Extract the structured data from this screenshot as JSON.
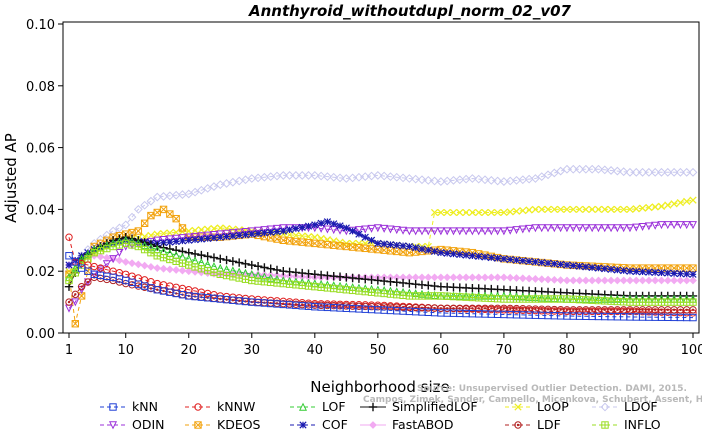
{
  "chart_data": {
    "type": "line",
    "title": "Annthyroid_withoutdupl_norm_02_v07",
    "xlabel": "Neighborhood size",
    "ylabel": "Adjusted AP",
    "xlim": [
      1,
      100
    ],
    "ylim": [
      0,
      0.1
    ],
    "x_ticks": [
      1,
      10,
      20,
      30,
      40,
      50,
      60,
      70,
      80,
      90,
      100
    ],
    "y_ticks": [
      "0.00",
      "0.02",
      "0.04",
      "0.06",
      "0.08",
      "0.10"
    ],
    "grid": false,
    "legend_position": "bottom",
    "watermark": [
      "Source: Unsupervised Outlier Detection. DAMI, 2015.",
      "Campos, Zimek, Sander, Campello, Micenkova, Schubert, Assent, Houle"
    ],
    "series": [
      {
        "name": "kNN",
        "color": "#1f3fd6",
        "marker": "square",
        "dash": "4,3",
        "points": [
          [
            1,
            0.025
          ],
          [
            3,
            0.021
          ],
          [
            5,
            0.019
          ],
          [
            8,
            0.018
          ],
          [
            10,
            0.017
          ],
          [
            15,
            0.014
          ],
          [
            20,
            0.012
          ],
          [
            25,
            0.011
          ],
          [
            30,
            0.01
          ],
          [
            40,
            0.0085
          ],
          [
            50,
            0.0075
          ],
          [
            60,
            0.0065
          ],
          [
            70,
            0.006
          ],
          [
            80,
            0.0055
          ],
          [
            90,
            0.0052
          ],
          [
            100,
            0.005
          ]
        ]
      },
      {
        "name": "ODIN",
        "color": "#9b30d9",
        "marker": "triangle-down",
        "dash": "4,3",
        "points": [
          [
            1,
            0.008
          ],
          [
            2,
            0.01
          ],
          [
            3,
            0.014
          ],
          [
            5,
            0.019
          ],
          [
            8,
            0.024
          ],
          [
            10,
            0.028
          ],
          [
            15,
            0.03
          ],
          [
            20,
            0.031
          ],
          [
            25,
            0.032
          ],
          [
            30,
            0.033
          ],
          [
            35,
            0.034
          ],
          [
            40,
            0.034
          ],
          [
            45,
            0.033
          ],
          [
            50,
            0.034
          ],
          [
            55,
            0.033
          ],
          [
            60,
            0.033
          ],
          [
            65,
            0.033
          ],
          [
            70,
            0.033
          ],
          [
            75,
            0.034
          ],
          [
            80,
            0.034
          ],
          [
            85,
            0.034
          ],
          [
            90,
            0.034
          ],
          [
            95,
            0.035
          ],
          [
            100,
            0.035
          ]
        ]
      },
      {
        "name": "kNNW",
        "color": "#e02020",
        "marker": "circle",
        "dash": "4,3",
        "points": [
          [
            1,
            0.031
          ],
          [
            2,
            0.023
          ],
          [
            4,
            0.022
          ],
          [
            6,
            0.021
          ],
          [
            8,
            0.02
          ],
          [
            10,
            0.019
          ],
          [
            15,
            0.016
          ],
          [
            20,
            0.014
          ],
          [
            25,
            0.012
          ],
          [
            30,
            0.011
          ],
          [
            40,
            0.0095
          ],
          [
            50,
            0.009
          ],
          [
            60,
            0.008
          ],
          [
            70,
            0.0075
          ],
          [
            80,
            0.007
          ],
          [
            90,
            0.007
          ],
          [
            100,
            0.0065
          ]
        ]
      },
      {
        "name": "KDEOS",
        "color": "#f2a20c",
        "marker": "square-x",
        "dash": "4,3",
        "points": [
          [
            1,
            0.019
          ],
          [
            2,
            0.003
          ],
          [
            3,
            0.012
          ],
          [
            5,
            0.028
          ],
          [
            8,
            0.031
          ],
          [
            10,
            0.032
          ],
          [
            12,
            0.033
          ],
          [
            14,
            0.038
          ],
          [
            16,
            0.04
          ],
          [
            18,
            0.037
          ],
          [
            20,
            0.031
          ],
          [
            25,
            0.031
          ],
          [
            30,
            0.032
          ],
          [
            35,
            0.03
          ],
          [
            40,
            0.029
          ],
          [
            45,
            0.028
          ],
          [
            50,
            0.027
          ],
          [
            55,
            0.026
          ],
          [
            60,
            0.027
          ],
          [
            65,
            0.026
          ],
          [
            70,
            0.024
          ],
          [
            75,
            0.023
          ],
          [
            80,
            0.022
          ],
          [
            90,
            0.021
          ],
          [
            100,
            0.021
          ]
        ]
      },
      {
        "name": "LOF",
        "color": "#33cc33",
        "marker": "triangle",
        "dash": "4,3",
        "points": [
          [
            1,
            0.018
          ],
          [
            3,
            0.024
          ],
          [
            5,
            0.027
          ],
          [
            8,
            0.029
          ],
          [
            10,
            0.03
          ],
          [
            12,
            0.029
          ],
          [
            15,
            0.027
          ],
          [
            20,
            0.024
          ],
          [
            25,
            0.021
          ],
          [
            30,
            0.019
          ],
          [
            35,
            0.017
          ],
          [
            40,
            0.016
          ],
          [
            45,
            0.015
          ],
          [
            50,
            0.014
          ],
          [
            55,
            0.013
          ],
          [
            60,
            0.012
          ],
          [
            70,
            0.012
          ],
          [
            80,
            0.011
          ],
          [
            90,
            0.011
          ],
          [
            100,
            0.011
          ]
        ]
      },
      {
        "name": "COF",
        "color": "#1a1ab0",
        "marker": "star",
        "dash": "4,3",
        "points": [
          [
            1,
            0.022
          ],
          [
            3,
            0.025
          ],
          [
            5,
            0.027
          ],
          [
            8,
            0.029
          ],
          [
            10,
            0.03
          ],
          [
            15,
            0.029
          ],
          [
            20,
            0.03
          ],
          [
            25,
            0.031
          ],
          [
            30,
            0.032
          ],
          [
            35,
            0.033
          ],
          [
            40,
            0.035
          ],
          [
            42,
            0.036
          ],
          [
            45,
            0.034
          ],
          [
            50,
            0.029
          ],
          [
            55,
            0.028
          ],
          [
            60,
            0.026
          ],
          [
            65,
            0.025
          ],
          [
            70,
            0.024
          ],
          [
            75,
            0.023
          ],
          [
            80,
            0.022
          ],
          [
            90,
            0.02
          ],
          [
            100,
            0.019
          ]
        ]
      },
      {
        "name": "SimplifiedLOF",
        "color": "#111111",
        "marker": "plus",
        "dash": "",
        "points": [
          [
            1,
            0.015
          ],
          [
            3,
            0.024
          ],
          [
            5,
            0.027
          ],
          [
            8,
            0.03
          ],
          [
            10,
            0.031
          ],
          [
            12,
            0.03
          ],
          [
            15,
            0.028
          ],
          [
            20,
            0.026
          ],
          [
            25,
            0.024
          ],
          [
            30,
            0.022
          ],
          [
            35,
            0.02
          ],
          [
            40,
            0.019
          ],
          [
            45,
            0.018
          ],
          [
            50,
            0.017
          ],
          [
            55,
            0.016
          ],
          [
            60,
            0.015
          ],
          [
            70,
            0.014
          ],
          [
            80,
            0.013
          ],
          [
            90,
            0.012
          ],
          [
            100,
            0.012
          ]
        ]
      },
      {
        "name": "FastABOD",
        "color": "#f2aaf2",
        "marker": "diamond",
        "dash": "",
        "points": [
          [
            1,
            0.022
          ],
          [
            3,
            0.024
          ],
          [
            5,
            0.025
          ],
          [
            8,
            0.024
          ],
          [
            10,
            0.023
          ],
          [
            15,
            0.021
          ],
          [
            20,
            0.02
          ],
          [
            25,
            0.019
          ],
          [
            30,
            0.019
          ],
          [
            40,
            0.018
          ],
          [
            50,
            0.018
          ],
          [
            60,
            0.018
          ],
          [
            70,
            0.018
          ],
          [
            80,
            0.017
          ],
          [
            90,
            0.017
          ],
          [
            100,
            0.017
          ]
        ]
      },
      {
        "name": "LoOP",
        "color": "#eeee22",
        "marker": "x",
        "dash": "4,3",
        "points": [
          [
            1,
            0.02
          ],
          [
            3,
            0.023
          ],
          [
            5,
            0.026
          ],
          [
            8,
            0.029
          ],
          [
            10,
            0.03
          ],
          [
            15,
            0.032
          ],
          [
            20,
            0.033
          ],
          [
            25,
            0.034
          ],
          [
            30,
            0.033
          ],
          [
            35,
            0.032
          ],
          [
            40,
            0.031
          ],
          [
            45,
            0.029
          ],
          [
            50,
            0.029
          ],
          [
            55,
            0.028
          ],
          [
            58,
            0.028
          ],
          [
            59,
            0.039
          ],
          [
            60,
            0.039
          ],
          [
            65,
            0.039
          ],
          [
            70,
            0.039
          ],
          [
            75,
            0.04
          ],
          [
            80,
            0.04
          ],
          [
            85,
            0.04
          ],
          [
            90,
            0.04
          ],
          [
            95,
            0.041
          ],
          [
            100,
            0.043
          ]
        ]
      },
      {
        "name": "LDF",
        "color": "#b22222",
        "marker": "circle-dot",
        "dash": "4,3",
        "points": [
          [
            1,
            0.01
          ],
          [
            3,
            0.015
          ],
          [
            5,
            0.018
          ],
          [
            8,
            0.017
          ],
          [
            10,
            0.016
          ],
          [
            15,
            0.014
          ],
          [
            20,
            0.012
          ],
          [
            25,
            0.011
          ],
          [
            30,
            0.01
          ],
          [
            40,
            0.009
          ],
          [
            50,
            0.0085
          ],
          [
            60,
            0.008
          ],
          [
            70,
            0.008
          ],
          [
            80,
            0.0075
          ],
          [
            90,
            0.0075
          ],
          [
            100,
            0.0075
          ]
        ]
      },
      {
        "name": "LDOF",
        "color": "#c8c8ee",
        "marker": "diamond-open",
        "dash": "4,3",
        "points": [
          [
            1,
            0.02
          ],
          [
            3,
            0.025
          ],
          [
            5,
            0.029
          ],
          [
            8,
            0.033
          ],
          [
            10,
            0.035
          ],
          [
            12,
            0.04
          ],
          [
            15,
            0.044
          ],
          [
            20,
            0.045
          ],
          [
            25,
            0.048
          ],
          [
            30,
            0.05
          ],
          [
            35,
            0.051
          ],
          [
            40,
            0.051
          ],
          [
            45,
            0.05
          ],
          [
            50,
            0.051
          ],
          [
            55,
            0.05
          ],
          [
            60,
            0.049
          ],
          [
            65,
            0.05
          ],
          [
            70,
            0.049
          ],
          [
            75,
            0.05
          ],
          [
            80,
            0.053
          ],
          [
            85,
            0.053
          ],
          [
            90,
            0.052
          ],
          [
            95,
            0.052
          ],
          [
            100,
            0.052
          ]
        ]
      },
      {
        "name": "INFLO",
        "color": "#99dd22",
        "marker": "square-star",
        "dash": "4,3",
        "points": [
          [
            1,
            0.017
          ],
          [
            3,
            0.022
          ],
          [
            5,
            0.026
          ],
          [
            8,
            0.028
          ],
          [
            10,
            0.029
          ],
          [
            12,
            0.028
          ],
          [
            15,
            0.025
          ],
          [
            20,
            0.022
          ],
          [
            25,
            0.019
          ],
          [
            30,
            0.017
          ],
          [
            35,
            0.016
          ],
          [
            40,
            0.015
          ],
          [
            45,
            0.014
          ],
          [
            50,
            0.013
          ],
          [
            55,
            0.012
          ],
          [
            60,
            0.012
          ],
          [
            70,
            0.011
          ],
          [
            80,
            0.011
          ],
          [
            90,
            0.01
          ],
          [
            100,
            0.01
          ]
        ]
      }
    ]
  }
}
